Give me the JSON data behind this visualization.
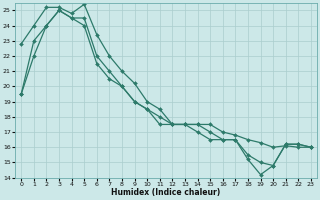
{
  "xlabel": "Humidex (Indice chaleur)",
  "xlim": [
    -0.5,
    23.5
  ],
  "ylim": [
    14,
    25.5
  ],
  "yticks": [
    14,
    15,
    16,
    17,
    18,
    19,
    20,
    21,
    22,
    23,
    24,
    25
  ],
  "xticks": [
    0,
    1,
    2,
    3,
    4,
    5,
    6,
    7,
    8,
    9,
    10,
    11,
    12,
    13,
    14,
    15,
    16,
    17,
    18,
    19,
    20,
    21,
    22,
    23
  ],
  "bg_color": "#cce8e8",
  "grid_color": "#aacece",
  "line_color": "#2d7a6a",
  "line1_x": [
    0,
    1,
    2,
    3,
    4,
    5,
    6,
    7,
    8,
    9,
    10,
    11,
    12,
    13,
    14,
    15,
    16,
    17,
    18,
    19,
    20,
    21,
    22,
    23
  ],
  "line1_y": [
    22.8,
    24.0,
    25.2,
    25.2,
    24.8,
    25.4,
    23.4,
    22.0,
    21.0,
    20.2,
    19.0,
    18.5,
    17.5,
    17.5,
    17.5,
    17.5,
    17.0,
    16.8,
    16.5,
    16.3,
    16.0,
    16.1,
    16.0,
    16.0
  ],
  "line2_x": [
    0,
    1,
    2,
    3,
    4,
    5,
    6,
    7,
    8,
    9,
    10,
    11,
    12,
    13,
    14,
    15,
    16,
    17,
    18,
    19,
    20,
    21,
    22,
    23
  ],
  "line2_y": [
    19.5,
    23.0,
    24.0,
    25.0,
    24.5,
    24.5,
    22.0,
    21.0,
    20.0,
    19.0,
    18.5,
    18.0,
    17.5,
    17.5,
    17.5,
    17.0,
    16.5,
    16.5,
    15.5,
    15.0,
    14.8,
    16.2,
    16.2,
    16.0
  ],
  "line3_x": [
    0,
    1,
    2,
    3,
    4,
    5,
    6,
    7,
    8,
    9,
    10,
    11,
    12,
    13,
    14,
    15,
    16,
    17,
    18,
    19,
    20,
    21,
    22,
    23
  ],
  "line3_y": [
    19.5,
    22.0,
    24.0,
    25.0,
    24.5,
    24.0,
    21.5,
    20.5,
    20.0,
    19.0,
    18.5,
    17.5,
    17.5,
    17.5,
    17.0,
    16.5,
    16.5,
    16.5,
    15.2,
    14.2,
    14.8,
    16.2,
    16.2,
    16.0
  ]
}
